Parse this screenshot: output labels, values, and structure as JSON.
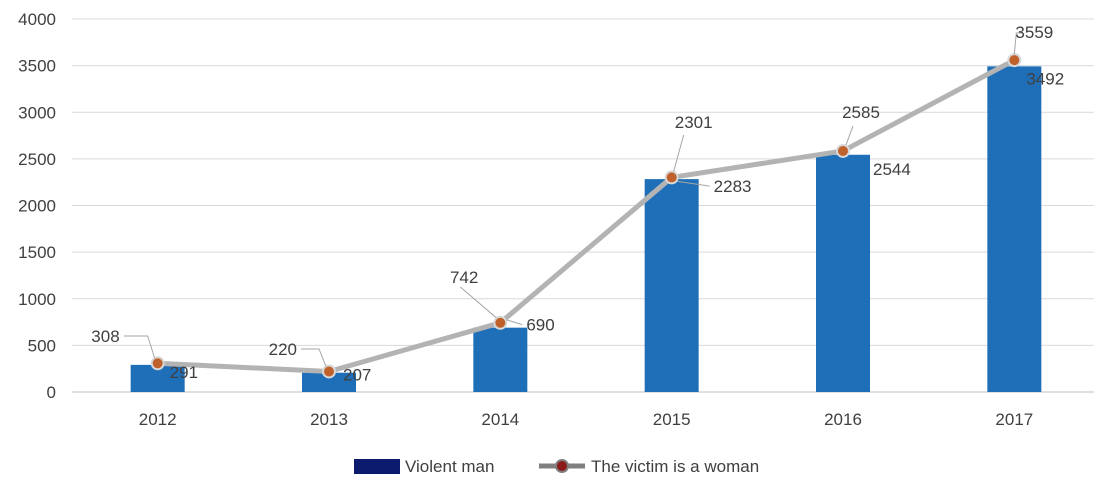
{
  "chart_data": {
    "type": "bar",
    "title": "",
    "xlabel": "",
    "ylabel": "",
    "categories": [
      "2012",
      "2013",
      "2014",
      "2015",
      "2016",
      "2017"
    ],
    "ylim": [
      0,
      4000
    ],
    "yticks": [
      0,
      500,
      1000,
      1500,
      2000,
      2500,
      3000,
      3500,
      4000
    ],
    "grid": true,
    "legend_position": "bottom",
    "series": [
      {
        "name": "Violent man",
        "type": "bar",
        "color": "#1f6fb8",
        "legend_color": "#0d1b6e",
        "values": [
          291,
          207,
          690,
          2283,
          2544,
          3492
        ]
      },
      {
        "name": "The victim is a woman",
        "type": "line",
        "color": "#b3b3b3",
        "marker_color": "#c0612b",
        "values": [
          308,
          220,
          742,
          2301,
          2585,
          3559
        ]
      }
    ]
  }
}
